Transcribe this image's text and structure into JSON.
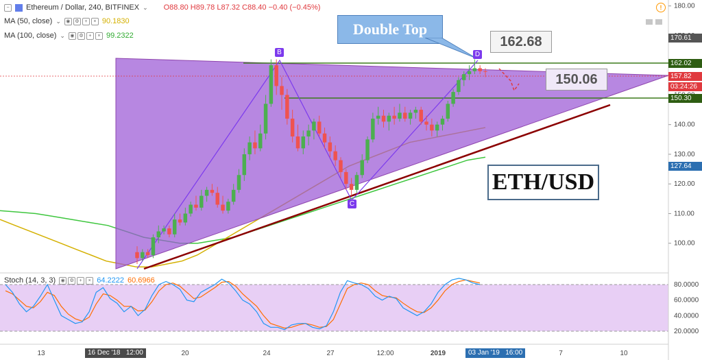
{
  "header": {
    "symbol": "Ethereum / Dollar, 240, BITFINEX",
    "open": "O88.80",
    "high": "H89.78",
    "low": "L87.32",
    "close": "C88.40",
    "change": "−0.40 (−0.45%)"
  },
  "indicators": [
    {
      "label": "MA (50, close)",
      "value": "90.1830",
      "color": "#f5c400"
    },
    {
      "label": "MA (100, close)",
      "value": "99.2322",
      "color": "#3ec63e"
    }
  ],
  "stoch": {
    "label": "Stoch (14, 3, 3)",
    "k_value": "64.2222",
    "d_value": "60.6966",
    "k_color": "#2196f3",
    "d_color": "#ff6d00"
  },
  "annotations": {
    "double_top": "Double Top",
    "top_price": "162.68",
    "target_price": "150.06",
    "pair": "ETH/USD",
    "points": [
      "B",
      "C",
      "D"
    ]
  },
  "price_axis": {
    "ticks": [
      "180.00",
      "170.00",
      "160.00",
      "150.00",
      "140.00",
      "130.00",
      "120.00",
      "110.00",
      "100.00"
    ],
    "tags": [
      {
        "text": "170.61",
        "color": "#555555"
      },
      {
        "text": "162.02",
        "color": "#2e5d12"
      },
      {
        "text": "157.82",
        "color": "#e0393e"
      },
      {
        "text": "03:24:26",
        "color": "#e0393e"
      },
      {
        "text": "150.30",
        "color": "#2e5d12"
      },
      {
        "text": "127.64",
        "color": "#2c6fb1"
      }
    ]
  },
  "stoch_axis": {
    "ticks": [
      "80.0000",
      "60.0000",
      "40.0000",
      "20.0000"
    ]
  },
  "time_axis": {
    "ticks": [
      "13",
      "20",
      "24",
      "27",
      "12:00",
      "2019",
      "7",
      "10"
    ],
    "highlights": [
      "16 Dec '18",
      "12:00",
      "03 Jan '19",
      "16:00"
    ]
  },
  "colors": {
    "triangle_fill": "#9b59d6",
    "up_candle": "#4caf50",
    "down_candle": "#ef5350",
    "support_line": "#8b0000",
    "resistance_line": "#3c7a1a"
  },
  "chart_data": {
    "type": "candlestick",
    "series": [
      {
        "name": "ETH/USD",
        "values": [
          [
            97,
            99,
            93,
            95
          ],
          [
            95,
            98,
            94,
            97
          ],
          [
            97,
            98,
            95,
            96
          ],
          [
            96,
            103,
            95,
            102
          ],
          [
            102,
            106,
            100,
            104
          ],
          [
            104,
            106,
            103,
            105
          ],
          [
            105,
            106,
            102,
            103
          ],
          [
            103,
            110,
            102,
            108
          ],
          [
            108,
            110,
            106,
            107
          ],
          [
            107,
            112,
            106,
            110
          ],
          [
            110,
            114,
            109,
            113
          ],
          [
            113,
            116,
            111,
            112
          ],
          [
            112,
            118,
            111,
            116
          ],
          [
            116,
            119,
            114,
            118
          ],
          [
            118,
            120,
            116,
            117
          ],
          [
            117,
            119,
            112,
            113
          ],
          [
            113,
            116,
            110,
            111
          ],
          [
            111,
            115,
            110,
            114
          ],
          [
            114,
            120,
            113,
            118
          ],
          [
            118,
            125,
            117,
            123
          ],
          [
            123,
            132,
            121,
            130
          ],
          [
            130,
            136,
            128,
            134
          ],
          [
            134,
            138,
            130,
            132
          ],
          [
            132,
            140,
            131,
            137
          ],
          [
            137,
            150,
            135,
            147
          ],
          [
            147,
            162,
            146,
            160
          ],
          [
            160,
            162,
            150,
            153
          ],
          [
            153,
            156,
            145,
            150
          ],
          [
            150,
            152,
            140,
            142
          ],
          [
            142,
            145,
            134,
            136
          ],
          [
            136,
            140,
            131,
            132
          ],
          [
            132,
            138,
            130,
            136
          ],
          [
            136,
            140,
            133,
            138
          ],
          [
            138,
            142,
            135,
            141
          ],
          [
            141,
            143,
            136,
            137
          ],
          [
            137,
            139,
            132,
            134
          ],
          [
            134,
            136,
            129,
            131
          ],
          [
            131,
            133,
            126,
            128
          ],
          [
            128,
            129,
            122,
            124
          ],
          [
            124,
            125,
            118,
            120
          ],
          [
            120,
            122,
            116,
            118
          ],
          [
            118,
            124,
            117,
            123
          ],
          [
            123,
            130,
            122,
            128
          ],
          [
            128,
            136,
            127,
            135
          ],
          [
            135,
            144,
            134,
            142
          ],
          [
            142,
            146,
            140,
            143
          ],
          [
            143,
            145,
            139,
            141
          ],
          [
            141,
            144,
            138,
            143
          ],
          [
            143,
            146,
            140,
            142
          ],
          [
            142,
            147,
            141,
            144
          ],
          [
            144,
            146,
            141,
            142
          ],
          [
            142,
            145,
            140,
            144
          ],
          [
            144,
            146,
            142,
            145
          ],
          [
            145,
            146,
            140,
            141
          ],
          [
            141,
            143,
            138,
            140
          ],
          [
            140,
            142,
            136,
            138
          ],
          [
            138,
            141,
            136,
            140
          ],
          [
            140,
            143,
            138,
            142
          ],
          [
            142,
            148,
            141,
            147
          ],
          [
            147,
            152,
            146,
            151
          ],
          [
            151,
            156,
            150,
            155
          ],
          [
            155,
            158,
            153,
            157
          ],
          [
            157,
            160,
            155,
            158
          ],
          [
            158,
            162,
            157,
            159
          ],
          [
            159,
            160,
            157,
            158
          ],
          [
            158,
            159,
            156,
            157.82
          ]
        ]
      },
      {
        "name": "MA (50, close)",
        "values": [
          108,
          106,
          104,
          102,
          100,
          98,
          96,
          94,
          93,
          92,
          92,
          93,
          94,
          96,
          99,
          102,
          105,
          108,
          111,
          114,
          117,
          120,
          123,
          126,
          128,
          130,
          132,
          134,
          135,
          136,
          137,
          138,
          139
        ]
      },
      {
        "name": "MA (100, close)",
        "values": [
          111,
          110.5,
          110,
          109,
          108,
          107,
          106,
          104,
          102,
          101,
          100,
          100,
          101,
          102,
          104,
          106,
          108,
          110,
          112,
          114,
          116,
          118,
          120,
          122,
          124,
          126,
          128,
          129
        ]
      }
    ],
    "stoch_k": [
      80,
      70,
      55,
      45,
      52,
      65,
      80,
      60,
      40,
      35,
      30,
      32,
      45,
      70,
      76,
      62,
      56,
      45,
      52,
      40,
      48,
      66,
      80,
      84,
      80,
      74,
      60,
      58,
      70,
      75,
      80,
      87,
      82,
      72,
      60,
      55,
      45,
      30,
      25,
      25,
      22,
      28,
      30,
      30,
      25,
      23,
      27,
      45,
      70,
      85,
      82,
      80,
      75,
      65,
      60,
      65,
      62,
      50,
      45,
      40,
      45,
      55,
      70,
      80,
      86,
      88,
      86,
      82,
      80
    ],
    "stoch_d": [
      72,
      68,
      60,
      52,
      50,
      58,
      70,
      66,
      52,
      42,
      36,
      33,
      38,
      55,
      68,
      66,
      60,
      52,
      52,
      46,
      47,
      58,
      72,
      80,
      82,
      78,
      70,
      62,
      64,
      70,
      76,
      83,
      84,
      78,
      68,
      60,
      52,
      40,
      30,
      27,
      24,
      25,
      28,
      30,
      28,
      25,
      26,
      35,
      55,
      75,
      80,
      82,
      80,
      72,
      66,
      64,
      63,
      56,
      50,
      45,
      44,
      50,
      60,
      72,
      80,
      84,
      86,
      84,
      82
    ],
    "ylim": [
      90,
      182
    ],
    "stoch_ylim": [
      5,
      95
    ]
  }
}
